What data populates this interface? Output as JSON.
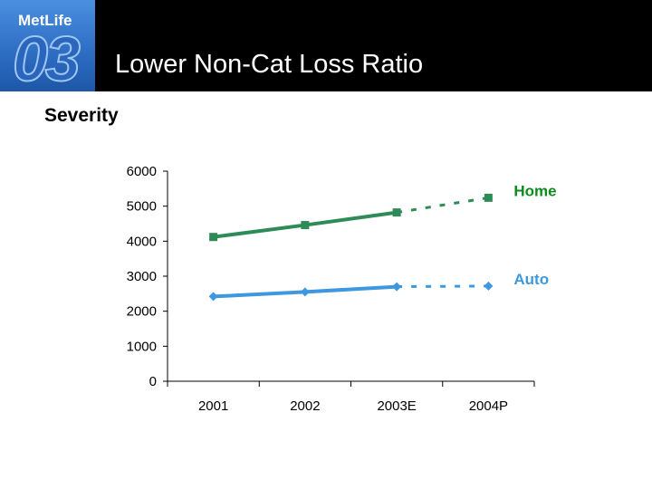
{
  "header": {
    "logo_text": "MetLife",
    "logo_number": "03",
    "title": "Lower Non-Cat Loss Ratio"
  },
  "subtitle": "Severity",
  "colors": {
    "home": "#2e8b57",
    "auto": "#3d98e0",
    "home_label": "#0b8c1c",
    "auto_label": "#3d98e0"
  },
  "chart_data": {
    "type": "line",
    "categories": [
      "2001",
      "2002",
      "2003E",
      "2004P"
    ],
    "ylim": [
      0,
      6000
    ],
    "yticks": [
      0,
      1000,
      2000,
      3000,
      4000,
      5000,
      6000
    ],
    "grid": false,
    "series": [
      {
        "name": "Home",
        "values": [
          4120,
          4460,
          4820,
          5240
        ],
        "projected_from_index": 2,
        "marker": "square"
      },
      {
        "name": "Auto",
        "values": [
          2420,
          2550,
          2700,
          2720
        ],
        "projected_from_index": 2,
        "marker": "diamond"
      }
    ]
  }
}
